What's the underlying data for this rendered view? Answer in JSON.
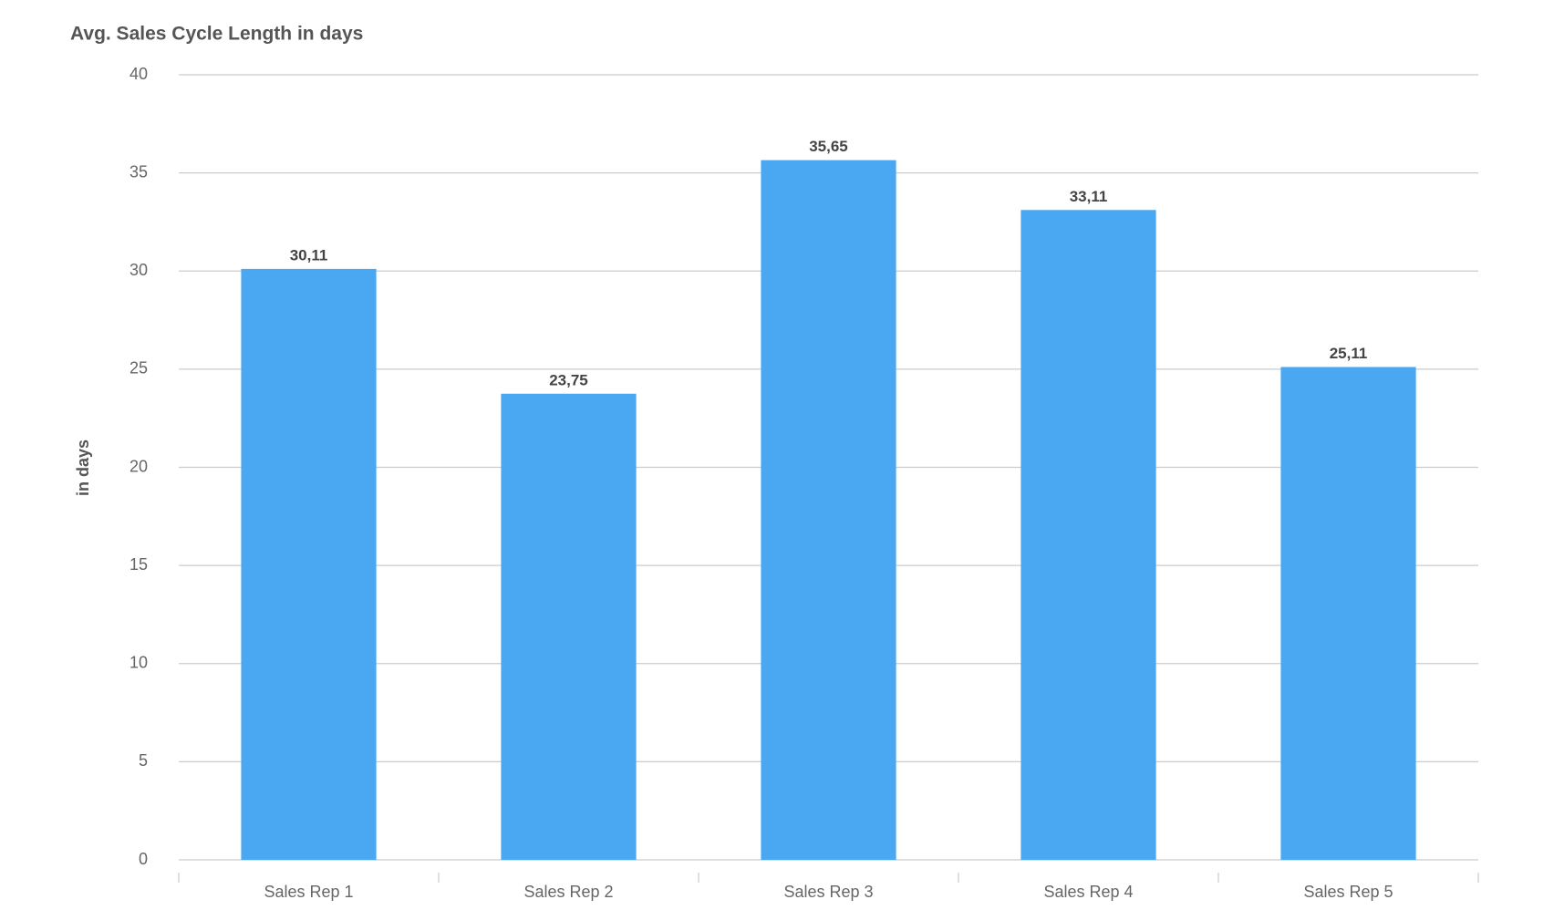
{
  "chart_data": {
    "type": "bar",
    "title": "Avg. Sales Cycle Length in days",
    "y_label": "in days",
    "categories": [
      "Sales Rep 1",
      "Sales Rep 2",
      "Sales Rep 3",
      "Sales Rep 4",
      "Sales Rep 5"
    ],
    "values": [
      30.11,
      23.75,
      35.65,
      33.11,
      25.11
    ],
    "value_labels": [
      "30,11",
      "23,75",
      "35,65",
      "33,11",
      "25,11"
    ],
    "color": "#4aa8f2",
    "ylim": [
      0,
      40
    ],
    "yticks": [
      0,
      5,
      10,
      15,
      20,
      25,
      30,
      35,
      40
    ],
    "grid": true
  }
}
